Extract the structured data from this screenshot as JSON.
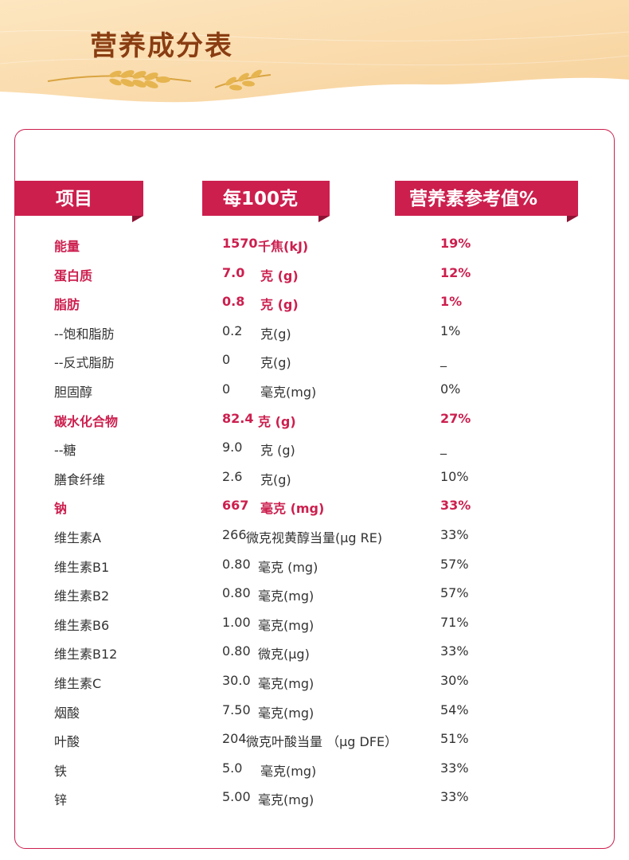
{
  "header": {
    "title": "营养成分表"
  },
  "table": {
    "headers": [
      "项目",
      "每100克",
      "营养素参考值%"
    ],
    "rows": [
      {
        "name": "能量",
        "amount": "1570",
        "unit": "千焦(kJ)",
        "nrv": "19%",
        "bold": true
      },
      {
        "name": "蛋白质",
        "amount": "7.0",
        "unit": "克 (g)",
        "nrv": "12%",
        "bold": true
      },
      {
        "name": "脂肪",
        "amount": "0.8",
        "unit": "克 (g)",
        "nrv": "1%",
        "bold": true
      },
      {
        "name": "--饱和脂肪",
        "amount": "0.2",
        "unit": "克(g)",
        "nrv": "1%",
        "bold": false
      },
      {
        "name": "--反式脂肪",
        "amount": "0",
        "unit": "克(g)",
        "nrv": "_",
        "bold": false
      },
      {
        "name": "胆固醇",
        "amount": "0",
        "unit": "毫克(mg)",
        "nrv": "0%",
        "bold": false
      },
      {
        "name": "碳水化合物",
        "amount": "82.4",
        "unit": "克 (g)",
        "nrv": "27%",
        "bold": true
      },
      {
        "name": "--糖",
        "amount": "9.0",
        "unit": "克 (g)",
        "nrv": "_",
        "bold": false
      },
      {
        "name": "膳食纤维",
        "amount": "2.6",
        "unit": "克(g)",
        "nrv": "10%",
        "bold": false
      },
      {
        "name": "钠",
        "amount": "667",
        "unit": "毫克 (mg)",
        "nrv": "33%",
        "bold": true
      },
      {
        "name": "维生素A",
        "amount": "266",
        "unit": "微克视黄醇当量(μg RE)",
        "nrv": "33%",
        "bold": false
      },
      {
        "name": "维生素B1",
        "amount": "0.80",
        "unit": "毫克 (mg)",
        "nrv": "57%",
        "bold": false
      },
      {
        "name": "维生素B2",
        "amount": "0.80",
        "unit": "毫克(mg)",
        "nrv": "57%",
        "bold": false
      },
      {
        "name": "维生素B6",
        "amount": "1.00",
        "unit": "毫克(mg)",
        "nrv": "71%",
        "bold": false
      },
      {
        "name": "维生素B12",
        "amount": "0.80",
        "unit": "微克(μg)",
        "nrv": "33%",
        "bold": false
      },
      {
        "name": "维生素C",
        "amount": "30.0",
        "unit": "毫克(mg)",
        "nrv": "30%",
        "bold": false
      },
      {
        "name": "烟酸",
        "amount": "7.50",
        "unit": "毫克(mg)",
        "nrv": "54%",
        "bold": false
      },
      {
        "name": "叶酸",
        "amount": "204",
        "unit": "微克叶酸当量 （μg DFE）",
        "nrv": "51%",
        "bold": false
      },
      {
        "name": "铁",
        "amount": "5.0",
        "unit": "毫克(mg)",
        "nrv": "33%",
        "bold": false
      },
      {
        "name": "锌",
        "amount": "5.00",
        "unit": "毫克(mg)",
        "nrv": "33%",
        "bold": false
      }
    ]
  },
  "colors": {
    "accent": "#cc1f4e",
    "title": "#8a3d12",
    "banner": "#fbe0b5",
    "wheat": "#d9a441"
  }
}
